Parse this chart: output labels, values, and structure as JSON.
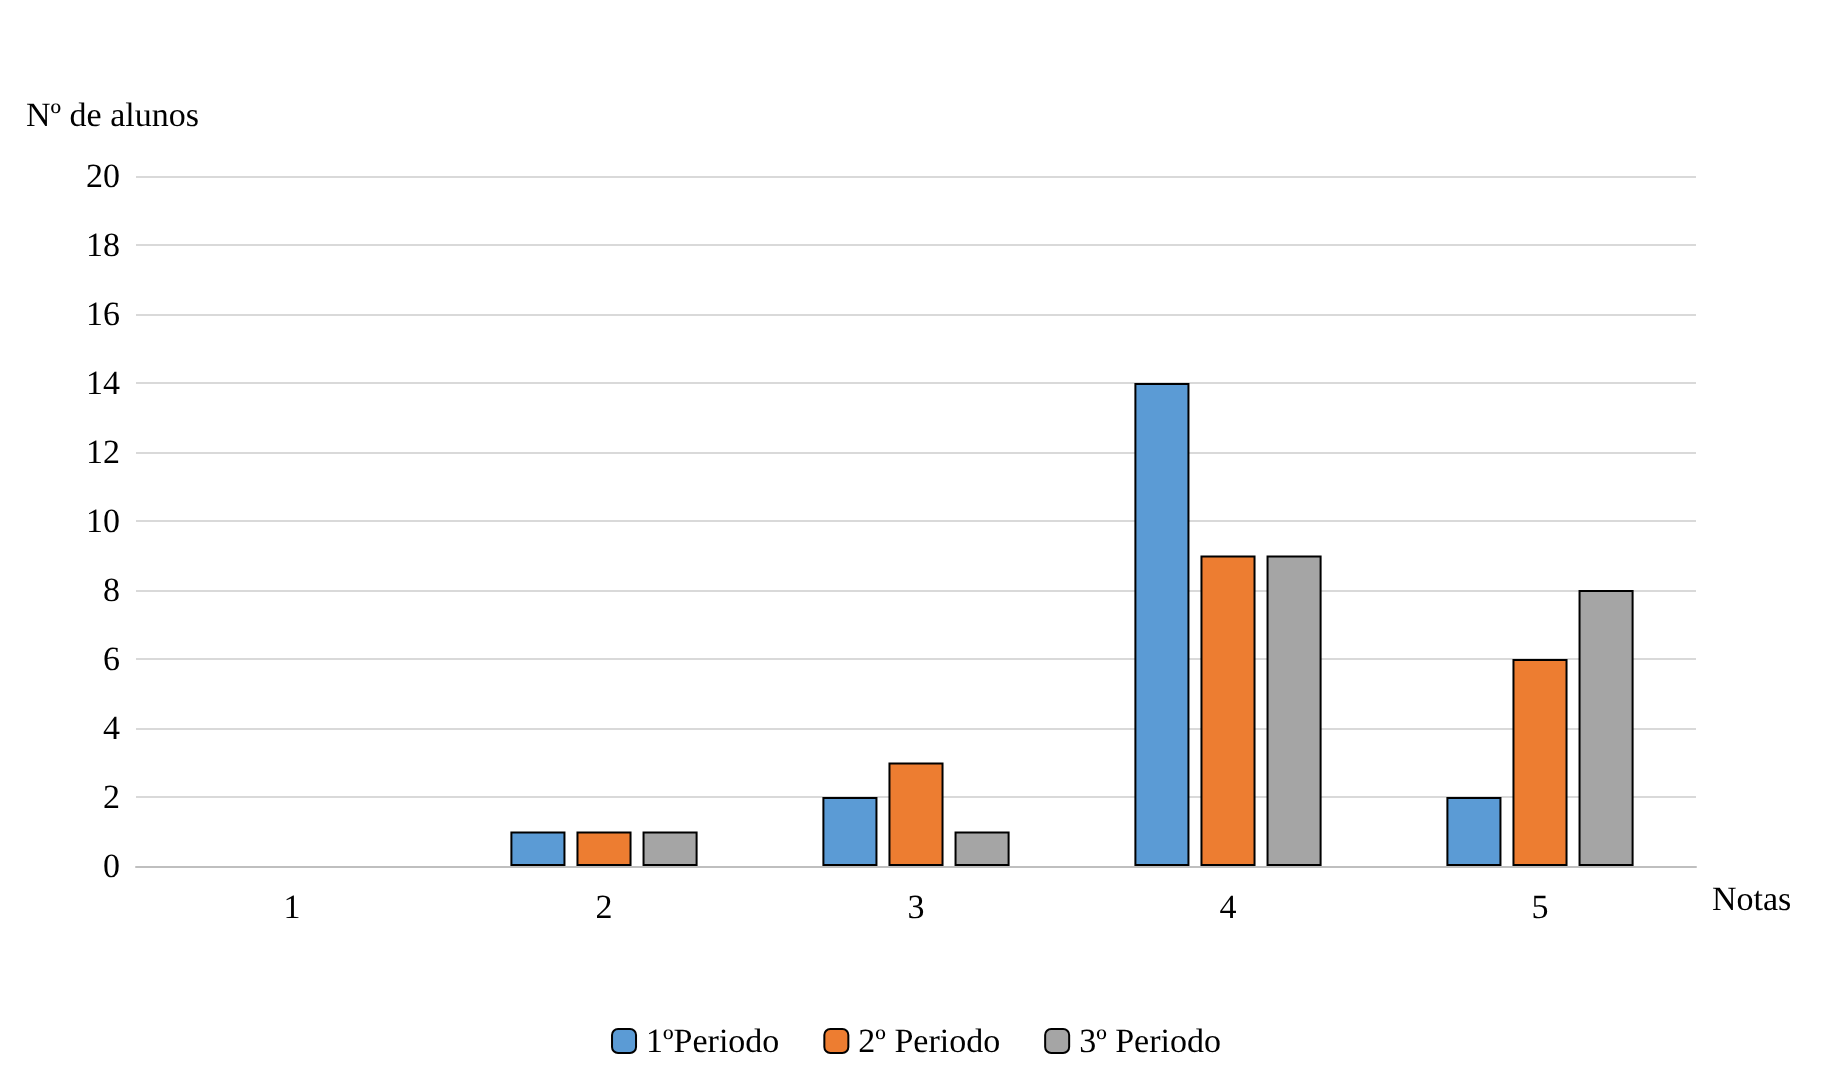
{
  "chart_data": {
    "type": "bar",
    "xlabel": "Notas",
    "ylabel": "Nº de alunos",
    "categories": [
      "1",
      "2",
      "3",
      "4",
      "5"
    ],
    "series": [
      {
        "name": "1ºPeriodo",
        "color": "#5b9bd5",
        "values": [
          0,
          1,
          2,
          14,
          2
        ]
      },
      {
        "name": "2º Periodo",
        "color": "#ed7d31",
        "values": [
          0,
          1,
          3,
          9,
          6
        ]
      },
      {
        "name": "3º Periodo",
        "color": "#a5a5a5",
        "values": [
          0,
          1,
          1,
          9,
          8
        ]
      }
    ],
    "ylim": [
      0,
      20
    ],
    "yticks": [
      0,
      2,
      4,
      6,
      8,
      10,
      12,
      14,
      16,
      18,
      20
    ],
    "grid": "y",
    "legend": "bottom"
  }
}
